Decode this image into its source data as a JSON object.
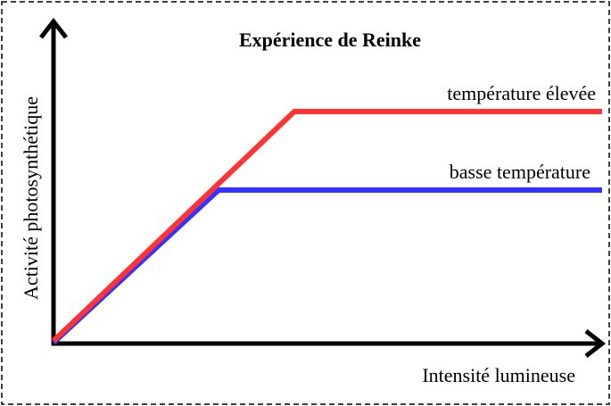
{
  "title": "Expérience de Reinke",
  "y_axis_label": "Activité photosynthétique",
  "x_axis_label": "Intensité lumineuse",
  "curves": [
    {
      "label": "température élevée",
      "color": "#ff3333"
    },
    {
      "label": "basse température",
      "color": "#3333ff"
    }
  ]
}
